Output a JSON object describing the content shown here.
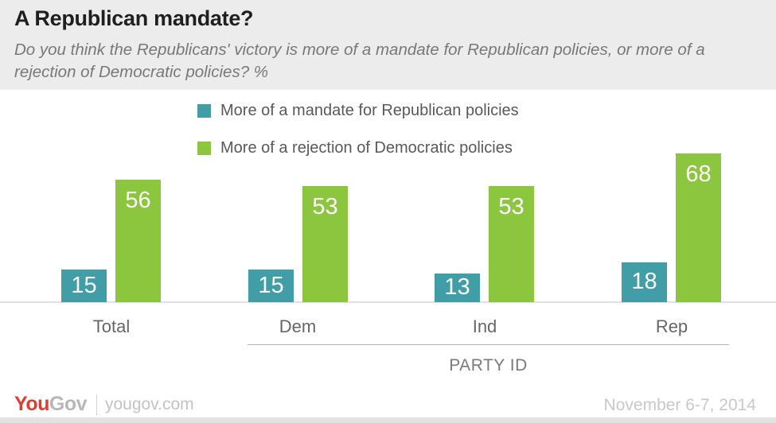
{
  "header": {
    "title": "A Republican mandate?",
    "subtitle": "Do you think the Republicans' victory is more of a mandate for Republican policies, or more of a rejection of Democratic policies? %"
  },
  "chart_data": {
    "type": "bar",
    "title": "A Republican mandate?",
    "subtitle": "Do you think the Republicans' victory is more of a mandate for Republican policies, or more of a rejection of Democratic policies? %",
    "categories": [
      "Total",
      "Dem",
      "Ind",
      "Rep"
    ],
    "series": [
      {
        "name": "More of a mandate for Republican policies",
        "color": "#419da6",
        "values": [
          15,
          15,
          13,
          18
        ]
      },
      {
        "name": "More of a rejection of Democratic policies",
        "color": "#8cc63f",
        "values": [
          56,
          53,
          53,
          68
        ]
      }
    ],
    "group_axis_label": "PARTY ID",
    "group_axis_categories": [
      "Dem",
      "Ind",
      "Rep"
    ],
    "value_labels_shown": true,
    "ylim": [
      0,
      100
    ],
    "grid": false,
    "legend_position": "top-center",
    "unit": "%"
  },
  "footer": {
    "logo_you": "You",
    "logo_gov": "Gov",
    "site": "yougov.com",
    "date": "November 6-7, 2014"
  },
  "colors": {
    "teal": "#419da6",
    "green": "#8cc63f",
    "header_bg": "#ececec",
    "axis_line": "#e0e0e0"
  }
}
